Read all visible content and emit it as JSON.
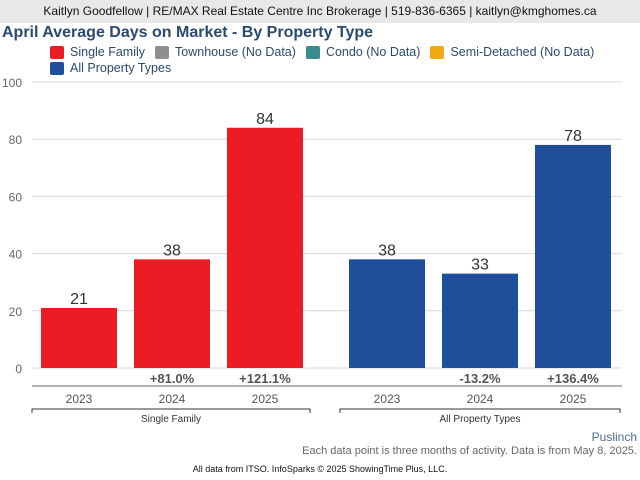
{
  "header": {
    "text": "Kaitlyn Goodfellow | RE/MAX Real Estate Centre Inc Brokerage | 519-836-6365 | kaitlyn@kmghomes.ca"
  },
  "legend": {
    "items": [
      {
        "label": "Single Family",
        "color": "#ec1c24"
      },
      {
        "label": "Townhouse (No Data)",
        "color": "#8c9190"
      },
      {
        "label": "Condo (No Data)",
        "color": "#3a8c8c"
      },
      {
        "label": "Semi-Detached (No Data)",
        "color": "#eeaa11"
      },
      {
        "label": "All Property Types",
        "color": "#1f4f9b"
      }
    ]
  },
  "chart_data": {
    "type": "bar",
    "title": "April Average Days on Market - By Property Type",
    "xlabel": "",
    "ylabel": "",
    "ylim": [
      0,
      100
    ],
    "yticks": [
      0,
      20,
      40,
      60,
      80,
      100
    ],
    "grid": true,
    "legend_position": "top-left",
    "groups": [
      {
        "name": "Single Family",
        "color": "#ec1c24",
        "categories": [
          "2023",
          "2024",
          "2025"
        ],
        "values": [
          21,
          38,
          84
        ],
        "changes": [
          "",
          "+81.0%",
          "+121.1%"
        ]
      },
      {
        "name": "All Property Types",
        "color": "#1f4f9b",
        "categories": [
          "2023",
          "2024",
          "2025"
        ],
        "values": [
          38,
          33,
          78
        ],
        "changes": [
          "",
          "-13.2%",
          "+136.4%"
        ]
      }
    ]
  },
  "footer": {
    "location": "Puslinch",
    "note": "Each data point is three months of activity. Data is from May 8, 2025.",
    "source": "All data from ITSO. InfoSparks © 2025 ShowingTime Plus, LLC."
  }
}
